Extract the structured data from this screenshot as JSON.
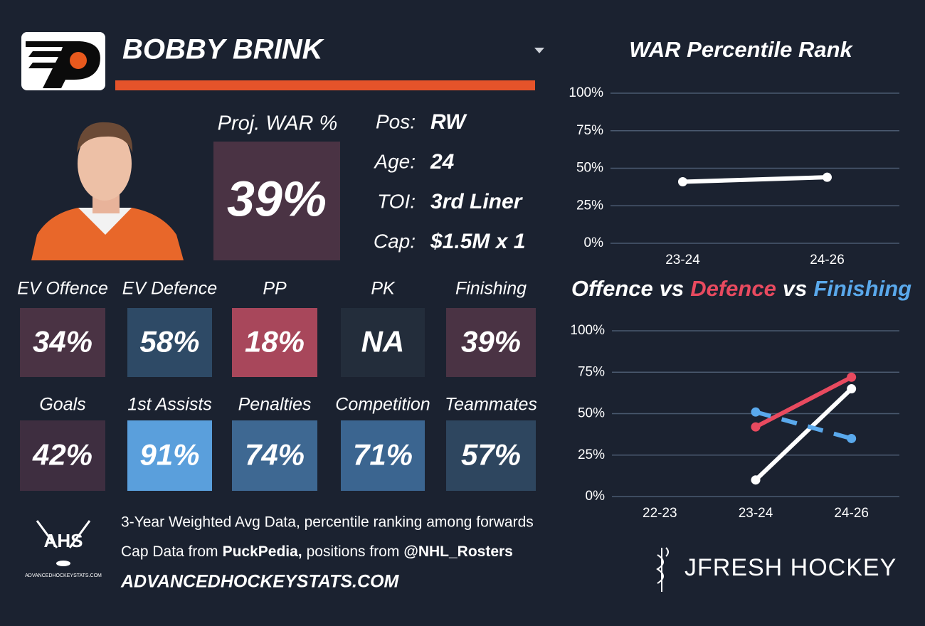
{
  "header": {
    "name": "BOBBY BRINK"
  },
  "projection": {
    "label": "Proj. WAR %",
    "value": "39%",
    "color": "#4a3344"
  },
  "info": [
    {
      "label": "Pos:",
      "value": "RW"
    },
    {
      "label": "Age:",
      "value": "24"
    },
    {
      "label": "TOI:",
      "value": "3rd Liner"
    },
    {
      "label": "Cap:",
      "value": "$1.5M x 1"
    }
  ],
  "tiles": [
    [
      {
        "label": "EV Offence",
        "value": "34%",
        "color": "#4a3344"
      },
      {
        "label": "EV Defence",
        "value": "58%",
        "color": "#2e4a66"
      },
      {
        "label": "PP",
        "value": "18%",
        "color": "#a8475b"
      },
      {
        "label": "PK",
        "value": "NA",
        "color": "#232d3b"
      },
      {
        "label": "Finishing",
        "value": "39%",
        "color": "#4a3344"
      }
    ],
    [
      {
        "label": "Goals",
        "value": "42%",
        "color": "#3e2e40"
      },
      {
        "label": "1st Assists",
        "value": "91%",
        "color": "#5a9fdc"
      },
      {
        "label": "Penalties",
        "value": "74%",
        "color": "#3e6892"
      },
      {
        "label": "Competition",
        "value": "71%",
        "color": "#3b6590"
      },
      {
        "label": "Teammates",
        "value": "57%",
        "color": "#2e465f"
      }
    ]
  ],
  "footer": {
    "note": "3-Year Weighted Avg Data, percentile ranking among forwards",
    "sources": [
      {
        "text": "Cap Data from",
        "bold": false
      },
      {
        "text": "PuckPedia,",
        "bold": true
      },
      {
        "text": "positions from",
        "bold": false
      },
      {
        "text": "@NHL_Rosters",
        "bold": true
      }
    ],
    "website": "ADVANCEDHOCKEYSTATS.COM",
    "ahs_logo": "AHS",
    "ahs_logo_caption": "ADVANCEDHOCKEYSTATS.COM",
    "brand": "JFRESH HOCKEY"
  },
  "chart_data": [
    {
      "type": "line",
      "title": "WAR Percentile Rank",
      "categories": [
        "23-24",
        "24-26"
      ],
      "series": [
        {
          "color": "#ffffff",
          "values": [
            41,
            44
          ]
        }
      ],
      "ylim": [
        0,
        100
      ],
      "yticks": [
        {
          "value": 0,
          "label": "0%"
        },
        {
          "value": 25,
          "label": "25%"
        },
        {
          "value": 50,
          "label": "50%"
        },
        {
          "value": 75,
          "label": "75%"
        },
        {
          "value": 100,
          "label": "100%"
        }
      ],
      "grid": true
    },
    {
      "type": "line",
      "title_separator": "vs",
      "categories": [
        "22-23",
        "23-24",
        "24-26"
      ],
      "series": [
        {
          "name": "Offence",
          "color": "#ffffff",
          "values": [
            null,
            10,
            65
          ]
        },
        {
          "name": "Defence",
          "color": "#e84a5f",
          "values": [
            null,
            42,
            72
          ]
        },
        {
          "name": "Finishing",
          "color": "#5aa9ec",
          "dashed": true,
          "values": [
            null,
            51,
            35
          ]
        }
      ],
      "ylim": [
        0,
        100
      ],
      "yticks": [
        {
          "value": 0,
          "label": "0%"
        },
        {
          "value": 25,
          "label": "25%"
        },
        {
          "value": 50,
          "label": "50%"
        },
        {
          "value": 75,
          "label": "75%"
        },
        {
          "value": 100,
          "label": "100%"
        }
      ],
      "grid": true
    }
  ]
}
